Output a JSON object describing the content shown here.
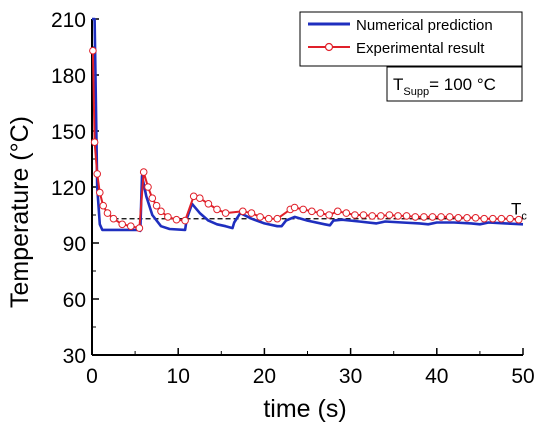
{
  "chart_data": {
    "type": "line",
    "xlabel": "time (s)",
    "ylabel": "Temperature (°C)",
    "xlim": [
      0,
      50
    ],
    "ylim": [
      30,
      210
    ],
    "x_ticks": [
      0,
      10,
      20,
      30,
      40,
      50
    ],
    "y_ticks": [
      30,
      60,
      90,
      120,
      150,
      180,
      210
    ],
    "grid": false,
    "legend_position": "top-right",
    "series": [
      {
        "name": "Numerical prediction",
        "color": "#1f2fbf",
        "marker": "none",
        "points": [
          [
            0,
            210
          ],
          [
            0.3,
            210
          ],
          [
            0.6,
            120
          ],
          [
            0.9,
            100
          ],
          [
            1.2,
            97
          ],
          [
            5.5,
            97
          ],
          [
            5.6,
            96.5
          ],
          [
            5.8,
            126
          ],
          [
            6.3,
            115
          ],
          [
            7.0,
            105
          ],
          [
            8.0,
            99
          ],
          [
            9.0,
            97.5
          ],
          [
            10.8,
            97
          ],
          [
            11.0,
            103
          ],
          [
            11.6,
            111
          ],
          [
            12.5,
            106
          ],
          [
            13.5,
            102
          ],
          [
            14.5,
            100
          ],
          [
            15.5,
            99
          ],
          [
            16.3,
            98
          ],
          [
            16.5,
            101
          ],
          [
            17.2,
            106
          ],
          [
            18.5,
            103
          ],
          [
            20.0,
            100.5
          ],
          [
            21.5,
            99
          ],
          [
            22.0,
            99
          ],
          [
            22.5,
            102
          ],
          [
            23.5,
            104
          ],
          [
            25.0,
            102
          ],
          [
            27.0,
            100
          ],
          [
            27.6,
            99.5
          ],
          [
            28.0,
            102
          ],
          [
            29.0,
            102.5
          ],
          [
            31.0,
            101.5
          ],
          [
            33.0,
            100.5
          ],
          [
            34.0,
            101.5
          ],
          [
            36.0,
            101
          ],
          [
            38.0,
            100.5
          ],
          [
            39.0,
            100
          ],
          [
            40.0,
            101
          ],
          [
            42.0,
            101
          ],
          [
            44.0,
            100.5
          ],
          [
            45.0,
            100
          ],
          [
            46.0,
            101
          ],
          [
            48.0,
            100.5
          ],
          [
            50.0,
            100
          ]
        ]
      },
      {
        "name": "Experimental result",
        "color": "#e0202a",
        "marker": "open-circle",
        "points": [
          [
            0.1,
            193
          ],
          [
            0.3,
            144
          ],
          [
            0.6,
            127
          ],
          [
            0.9,
            117
          ],
          [
            1.3,
            110
          ],
          [
            1.8,
            106
          ],
          [
            2.5,
            103
          ],
          [
            3.5,
            100
          ],
          [
            4.5,
            99
          ],
          [
            5.5,
            98
          ],
          [
            6.0,
            128
          ],
          [
            6.5,
            120
          ],
          [
            7.0,
            114
          ],
          [
            7.5,
            110
          ],
          [
            8.0,
            107
          ],
          [
            8.8,
            104
          ],
          [
            9.8,
            102.5
          ],
          [
            10.8,
            102
          ],
          [
            11.8,
            115
          ],
          [
            12.5,
            114
          ],
          [
            13.5,
            111
          ],
          [
            14.5,
            108
          ],
          [
            15.5,
            106
          ],
          [
            17.5,
            107
          ],
          [
            18.5,
            106
          ],
          [
            19.5,
            104
          ],
          [
            20.5,
            103
          ],
          [
            21.5,
            103
          ],
          [
            23.0,
            108
          ],
          [
            23.5,
            109
          ],
          [
            24.5,
            108
          ],
          [
            25.5,
            107
          ],
          [
            26.5,
            106
          ],
          [
            27.5,
            105
          ],
          [
            28.5,
            107
          ],
          [
            29.5,
            106
          ],
          [
            30.5,
            105
          ],
          [
            31.5,
            105
          ],
          [
            32.5,
            104.5
          ],
          [
            33.5,
            104.5
          ],
          [
            34.5,
            105
          ],
          [
            35.5,
            104.5
          ],
          [
            36.5,
            104.5
          ],
          [
            37.5,
            104
          ],
          [
            38.5,
            104
          ],
          [
            39.5,
            104
          ],
          [
            40.5,
            104
          ],
          [
            41.5,
            104
          ],
          [
            42.5,
            103.5
          ],
          [
            43.5,
            103.5
          ],
          [
            44.5,
            103.5
          ],
          [
            45.5,
            103
          ],
          [
            46.5,
            103
          ],
          [
            47.5,
            103
          ],
          [
            48.5,
            103
          ],
          [
            49.5,
            102.5
          ]
        ]
      }
    ],
    "reference_line": {
      "label": "T",
      "label_subscript": "c",
      "y": 103,
      "x_range": [
        2.5,
        50
      ],
      "style": "dashed"
    },
    "annotation": {
      "text_main": "T",
      "text_sub": "Supp",
      "text_rest": "= 100 °C"
    }
  }
}
